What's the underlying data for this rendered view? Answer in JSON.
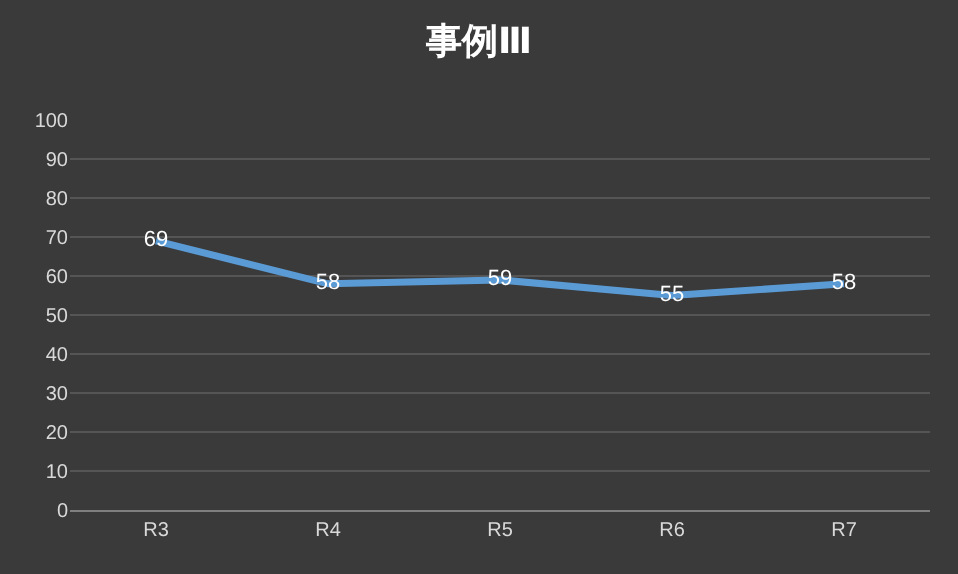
{
  "chart_data": {
    "type": "line",
    "title": "事例Ⅲ",
    "categories": [
      "R3",
      "R4",
      "R5",
      "R6",
      "R7"
    ],
    "series": [
      {
        "color": "#5b9bd5",
        "values": [
          69,
          58,
          59,
          55,
          58
        ]
      }
    ],
    "ylim": [
      0,
      100
    ],
    "yticks": [
      0,
      10,
      20,
      30,
      40,
      50,
      60,
      70,
      80,
      90,
      100
    ],
    "grid": "y",
    "legend": false,
    "data_labels": true,
    "marker": "none",
    "line_style": "solid"
  }
}
